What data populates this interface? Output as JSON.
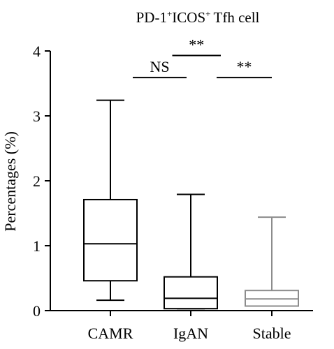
{
  "chart_data": {
    "type": "box",
    "title": {
      "base": "PD-1",
      "sup1": "+",
      "mid": "ICOS",
      "sup2": "+",
      "tail": "Tfh cell"
    },
    "ylabel": "Percentages (%)",
    "xlabel": "",
    "ylim": [
      0,
      4
    ],
    "yticks": [
      0,
      1,
      2,
      3,
      4
    ],
    "categories": [
      "CAMR",
      "IgAN",
      "Stable"
    ],
    "boxes": [
      {
        "name": "CAMR",
        "min": 0.16,
        "q1": 0.46,
        "median": 1.03,
        "q3": 1.71,
        "max": 3.24,
        "color": "#000000"
      },
      {
        "name": "IgAN",
        "min": 0.03,
        "q1": 0.03,
        "median": 0.19,
        "q3": 0.52,
        "max": 1.79,
        "color": "#000000"
      },
      {
        "name": "Stable",
        "min": 0.07,
        "q1": 0.07,
        "median": 0.18,
        "q3": 0.31,
        "max": 1.44,
        "color": "#8c8c8c"
      }
    ],
    "significance": [
      {
        "from": 0,
        "to": 1,
        "label": "NS",
        "level": 3.59
      },
      {
        "from": 1,
        "to": 2,
        "label": "**",
        "level": 3.59
      },
      {
        "from": 0.5,
        "to": 1.5,
        "label": "**",
        "level": 3.93
      }
    ],
    "grid": false,
    "legend": "none"
  }
}
